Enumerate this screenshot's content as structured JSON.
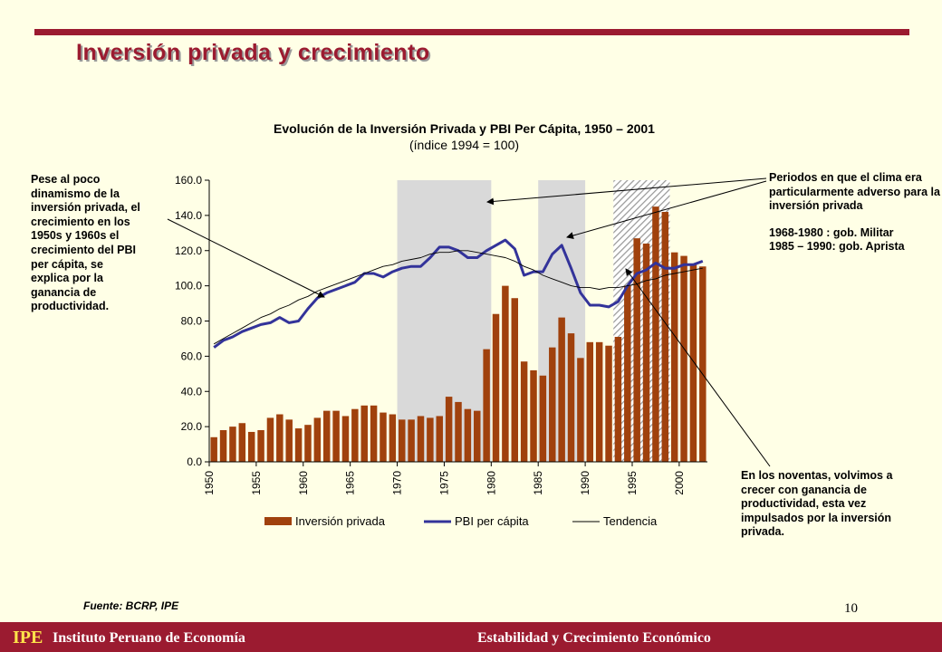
{
  "slide": {
    "title": "Inversión privada y crecimiento",
    "page_number": "10",
    "source": "Fuente: BCRP, IPE"
  },
  "notes": {
    "left": "Pese al poco dinamismo de la inversión privada, el crecimiento en los 1950s y 1960s el crecimiento del PBI per cápita, se explica por la ganancia de productividad.",
    "right_lines": [
      "Periodos en que el clima era particularmente adverso para la inversión privada"
    ],
    "right_periods": [
      "1968-1980 : gob. Militar",
      "1985 – 1990: gob. Aprista"
    ],
    "bottom": "En los noventas, volvimos a crecer con ganancia de productividad, esta vez impulsados por la inversión privada."
  },
  "footer": {
    "logo": "IPE",
    "institute": "Instituto Peruano de Economía",
    "tagline": "Estabilidad y Crecimiento Económico"
  },
  "colors": {
    "bars": "#A0410D",
    "line": "#33339A",
    "trend": "#000000",
    "shade": "#D9D9D9",
    "accent": "#9B1B30",
    "background": "#FFFFE6"
  },
  "chart_data": {
    "type": "bar",
    "title": "Evolución de la Inversión Privada y PBI Per Cápita, 1950 – 2001",
    "subtitle": "(índice 1994 = 100)",
    "years": [
      1950,
      1951,
      1952,
      1953,
      1954,
      1955,
      1956,
      1957,
      1958,
      1959,
      1960,
      1961,
      1962,
      1963,
      1964,
      1965,
      1966,
      1967,
      1968,
      1969,
      1970,
      1971,
      1972,
      1973,
      1974,
      1975,
      1976,
      1977,
      1978,
      1979,
      1980,
      1981,
      1982,
      1983,
      1984,
      1985,
      1986,
      1987,
      1988,
      1989,
      1990,
      1991,
      1992,
      1993,
      1994,
      1995,
      1996,
      1997,
      1998,
      1999,
      2000,
      2001,
      2002
    ],
    "x_tick_labels": [
      "1950",
      "1955",
      "1960",
      "1965",
      "1970",
      "1975",
      "1980",
      "1985",
      "1990",
      "1995",
      "2000"
    ],
    "y_tick_labels": [
      "0.0",
      "20.0",
      "40.0",
      "60.0",
      "80.0",
      "100.0",
      "120.0",
      "140.0",
      "160.0"
    ],
    "ylim": [
      0,
      160
    ],
    "series": [
      {
        "name": "Inversión privada",
        "type": "bar",
        "values": [
          14,
          18,
          20,
          22,
          17,
          18,
          25,
          27,
          24,
          19,
          21,
          25,
          29,
          29,
          26,
          30,
          32,
          32,
          28,
          27,
          24,
          24,
          26,
          25,
          26,
          37,
          34,
          30,
          29,
          64,
          84,
          100,
          93,
          57,
          52,
          49,
          65,
          82,
          73,
          59,
          68,
          68,
          66,
          71,
          100,
          127,
          124,
          145,
          142,
          119,
          117,
          112,
          111
        ]
      },
      {
        "name": "PBI per cápita",
        "type": "line",
        "values": [
          65,
          69,
          71,
          74,
          76,
          78,
          79,
          82,
          79,
          80,
          87,
          93,
          96,
          98,
          100,
          102,
          107,
          107,
          105,
          108,
          110,
          111,
          111,
          116,
          122,
          122,
          120,
          116,
          116,
          120,
          123,
          126,
          121,
          106,
          108,
          108,
          118,
          123,
          110,
          96,
          89,
          89,
          88,
          91,
          100,
          107,
          109,
          113,
          110,
          110,
          112,
          112,
          114
        ]
      },
      {
        "name": "Tendencia",
        "type": "line",
        "values": [
          67,
          70,
          73,
          76,
          79,
          82,
          84,
          87,
          89,
          92,
          94,
          97,
          99,
          101,
          103,
          105,
          107,
          109,
          111,
          112,
          114,
          115,
          116,
          118,
          119,
          119,
          120,
          120,
          119,
          118,
          117,
          116,
          114,
          111,
          109,
          106,
          104,
          102,
          100,
          99,
          99,
          98,
          99,
          99,
          100,
          101,
          103,
          104,
          106,
          107,
          108,
          109,
          110
        ]
      }
    ],
    "shaded_periods": [
      {
        "from": 1970,
        "to": 1980,
        "style": "solid"
      },
      {
        "from": 1985,
        "to": 1990,
        "style": "solid"
      },
      {
        "from": 1993,
        "to": 1999,
        "style": "hatched"
      }
    ],
    "legend": "bottom"
  }
}
